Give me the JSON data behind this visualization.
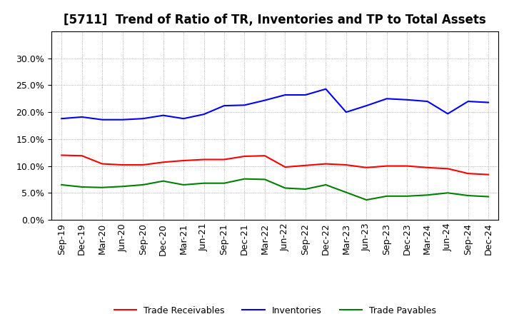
{
  "title": "[5711]  Trend of Ratio of TR, Inventories and TP to Total Assets",
  "x_labels": [
    "Sep-19",
    "Dec-19",
    "Mar-20",
    "Jun-20",
    "Sep-20",
    "Dec-20",
    "Mar-21",
    "Jun-21",
    "Sep-21",
    "Dec-21",
    "Mar-22",
    "Jun-22",
    "Sep-22",
    "Dec-22",
    "Mar-23",
    "Jun-23",
    "Sep-23",
    "Dec-23",
    "Mar-24",
    "Jun-24",
    "Sep-24",
    "Dec-24"
  ],
  "trade_receivables": [
    0.12,
    0.119,
    0.104,
    0.102,
    0.102,
    0.107,
    0.11,
    0.112,
    0.112,
    0.118,
    0.119,
    0.098,
    0.101,
    0.104,
    0.102,
    0.097,
    0.1,
    0.1,
    0.097,
    0.095,
    0.086,
    0.084
  ],
  "inventories": [
    0.188,
    0.191,
    0.186,
    0.186,
    0.188,
    0.194,
    0.188,
    0.196,
    0.212,
    0.213,
    0.222,
    0.232,
    0.232,
    0.243,
    0.2,
    0.212,
    0.225,
    0.223,
    0.22,
    0.197,
    0.22,
    0.218
  ],
  "trade_payables": [
    0.065,
    0.061,
    0.06,
    0.062,
    0.065,
    0.072,
    0.065,
    0.068,
    0.068,
    0.076,
    0.075,
    0.059,
    0.057,
    0.065,
    0.051,
    0.037,
    0.044,
    0.044,
    0.046,
    0.05,
    0.045,
    0.043
  ],
  "tr_color": "#ff0000",
  "inv_color": "#0000ff",
  "tp_color": "#008000",
  "ylim": [
    0.0,
    0.35
  ],
  "yticks": [
    0.0,
    0.05,
    0.1,
    0.15,
    0.2,
    0.25,
    0.3
  ],
  "legend_labels": [
    "Trade Receivables",
    "Inventories",
    "Trade Payables"
  ],
  "background_color": "#ffffff",
  "plot_bg_color": "#ffffff",
  "title_fontsize": 12,
  "tick_fontsize": 9,
  "legend_fontsize": 9,
  "linewidth": 1.5
}
